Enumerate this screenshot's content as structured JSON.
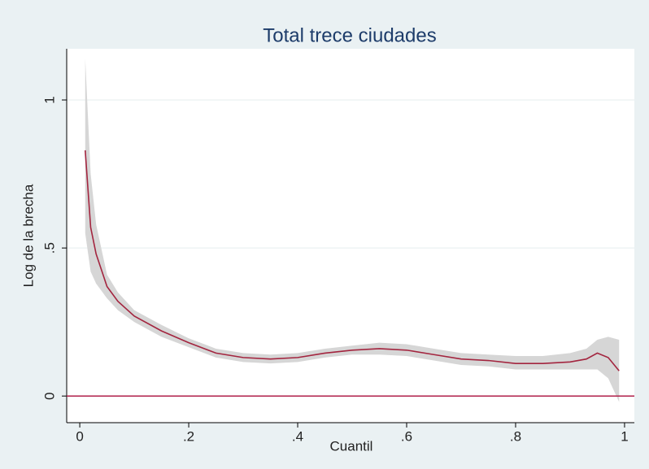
{
  "chart_data": {
    "type": "line",
    "title": "Total trece ciudades",
    "xlabel": "Cuantil",
    "ylabel": "Log de la brecha",
    "x": [
      0.01,
      0.02,
      0.03,
      0.05,
      0.07,
      0.1,
      0.15,
      0.2,
      0.25,
      0.3,
      0.35,
      0.4,
      0.45,
      0.5,
      0.55,
      0.6,
      0.65,
      0.7,
      0.75,
      0.8,
      0.85,
      0.9,
      0.93,
      0.95,
      0.97,
      0.99
    ],
    "series": [
      {
        "color": "#a3253f",
        "values": [
          0.83,
          0.57,
          0.48,
          0.37,
          0.32,
          0.27,
          0.22,
          0.18,
          0.145,
          0.13,
          0.125,
          0.13,
          0.145,
          0.155,
          0.16,
          0.155,
          0.14,
          0.125,
          0.12,
          0.11,
          0.11,
          0.115,
          0.125,
          0.145,
          0.13,
          0.085
        ]
      }
    ],
    "band": {
      "color": "#d6d6d6",
      "upper": [
        1.14,
        0.75,
        0.58,
        0.41,
        0.35,
        0.29,
        0.24,
        0.195,
        0.16,
        0.145,
        0.14,
        0.145,
        0.16,
        0.17,
        0.18,
        0.175,
        0.16,
        0.145,
        0.14,
        0.135,
        0.135,
        0.145,
        0.16,
        0.19,
        0.2,
        0.19
      ],
      "lower": [
        0.55,
        0.42,
        0.38,
        0.33,
        0.29,
        0.25,
        0.2,
        0.165,
        0.13,
        0.115,
        0.11,
        0.115,
        0.13,
        0.14,
        0.14,
        0.135,
        0.12,
        0.105,
        0.1,
        0.09,
        0.09,
        0.09,
        0.09,
        0.09,
        0.06,
        -0.02
      ]
    },
    "hline": {
      "value": 0,
      "color": "#b0204a"
    },
    "xlim": [
      -0.024,
      1.018
    ],
    "ylim": [
      -0.09,
      1.173
    ],
    "xticks": [
      0,
      {
        "value": 0.2,
        "label": ".2"
      },
      {
        "value": 0.4,
        "label": ".4"
      },
      {
        "value": 0.6,
        "label": ".6"
      },
      {
        "value": 0.8,
        "label": ".8"
      },
      1
    ],
    "yticks": [
      0,
      {
        "value": 0.5,
        "label": ".5"
      },
      1
    ],
    "grid": true
  }
}
